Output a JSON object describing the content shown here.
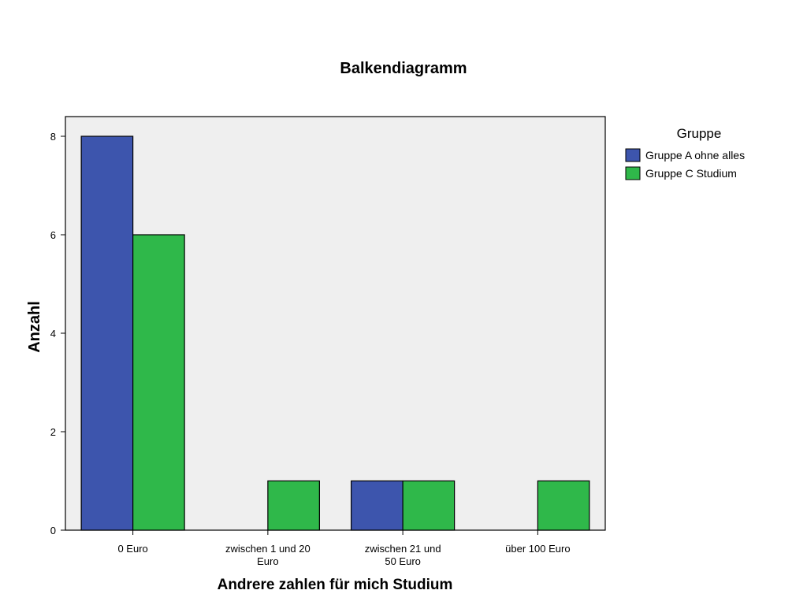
{
  "chart_data": {
    "type": "bar",
    "title": "Balkendiagramm",
    "xlabel": "Andrere zahlen für mich Studium",
    "ylabel": "Anzahl",
    "categories": [
      [
        "0 Euro"
      ],
      [
        "zwischen 1 und 20",
        "Euro"
      ],
      [
        "zwischen 21 und",
        "50 Euro"
      ],
      [
        "über 100 Euro"
      ]
    ],
    "series": [
      {
        "name": "Gruppe A ohne alles",
        "values": [
          8,
          0,
          1,
          0
        ],
        "color": "#3d55ad"
      },
      {
        "name": "Gruppe C Studium",
        "values": [
          6,
          1,
          1,
          1
        ],
        "color": "#2fb84a"
      }
    ],
    "ylim": [
      0,
      8.4
    ],
    "yticks": [
      0,
      2,
      4,
      6,
      8
    ],
    "legend": {
      "title": "Gruppe",
      "position": "right"
    },
    "grid": false,
    "plot_background": "#efefef"
  }
}
